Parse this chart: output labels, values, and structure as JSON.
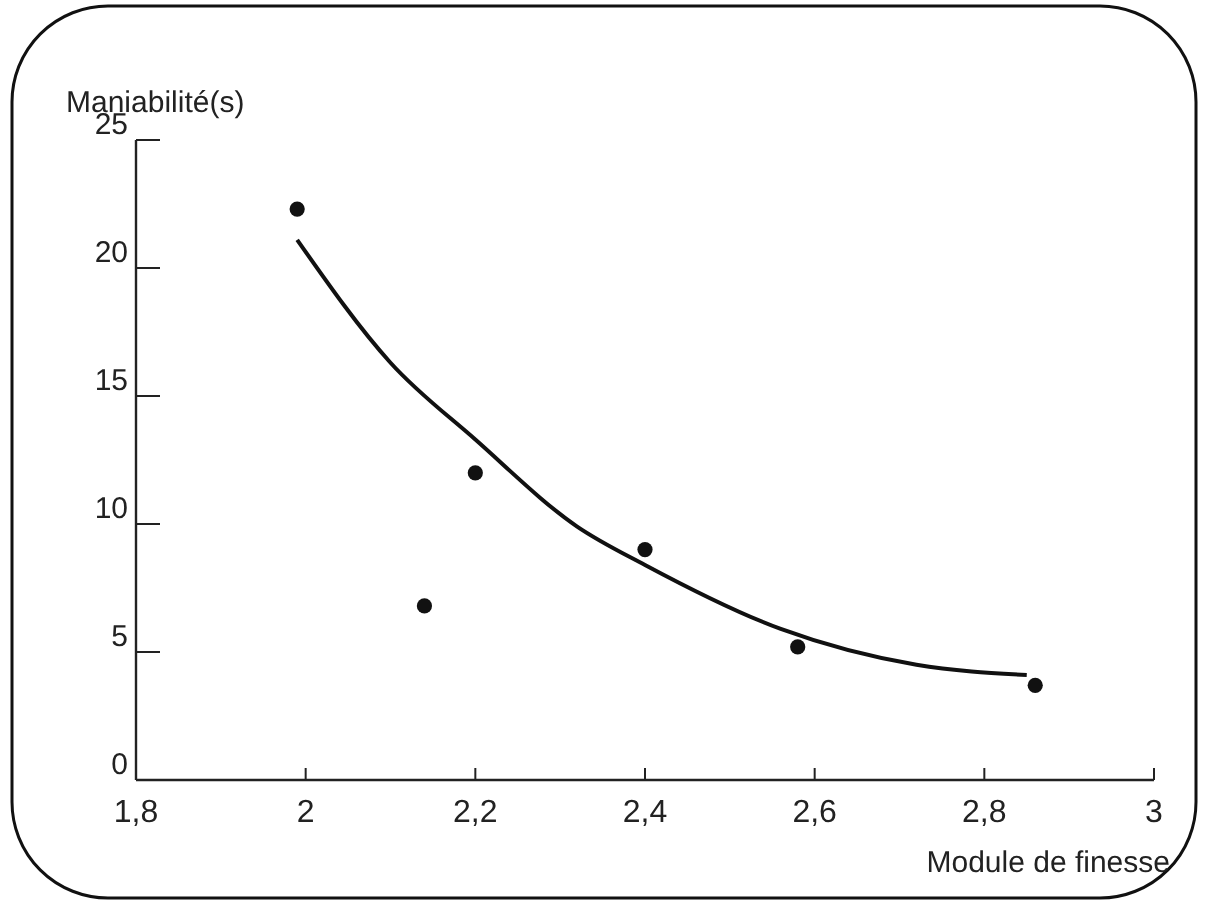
{
  "chart_data": {
    "type": "scatter",
    "xlabel": "Module de finesse",
    "ylabel": "Maniabilité(s)",
    "xlim": [
      1.8,
      3
    ],
    "xticks": [
      {
        "value": 1.8,
        "label": "1,8"
      },
      2,
      {
        "value": 2.2,
        "label": "2,2"
      },
      {
        "value": 2.4,
        "label": "2,4"
      },
      {
        "value": 2.6,
        "label": "2,6"
      },
      {
        "value": 2.8,
        "label": "2,8"
      },
      3
    ],
    "ylim": [
      0,
      25
    ],
    "yticks": [
      0,
      5,
      10,
      15,
      20,
      25
    ],
    "grid": false,
    "series": [
      {
        "color": "#111111",
        "marker": "circle",
        "x": [
          1.99,
          2.14,
          2.2,
          2.4,
          2.58,
          2.86
        ],
        "values": [
          22.3,
          6.8,
          12.0,
          9.0,
          5.2,
          3.7
        ]
      },
      {
        "type": "line",
        "color": "#111111",
        "marker": "none",
        "line_style": "solid",
        "x": [
          1.99,
          2.1,
          2.2,
          2.32,
          2.4,
          2.56,
          2.72,
          2.85
        ],
        "values": [
          21.1,
          16.3,
          13.3,
          9.9,
          8.4,
          5.9,
          4.5,
          4.1
        ]
      }
    ]
  }
}
